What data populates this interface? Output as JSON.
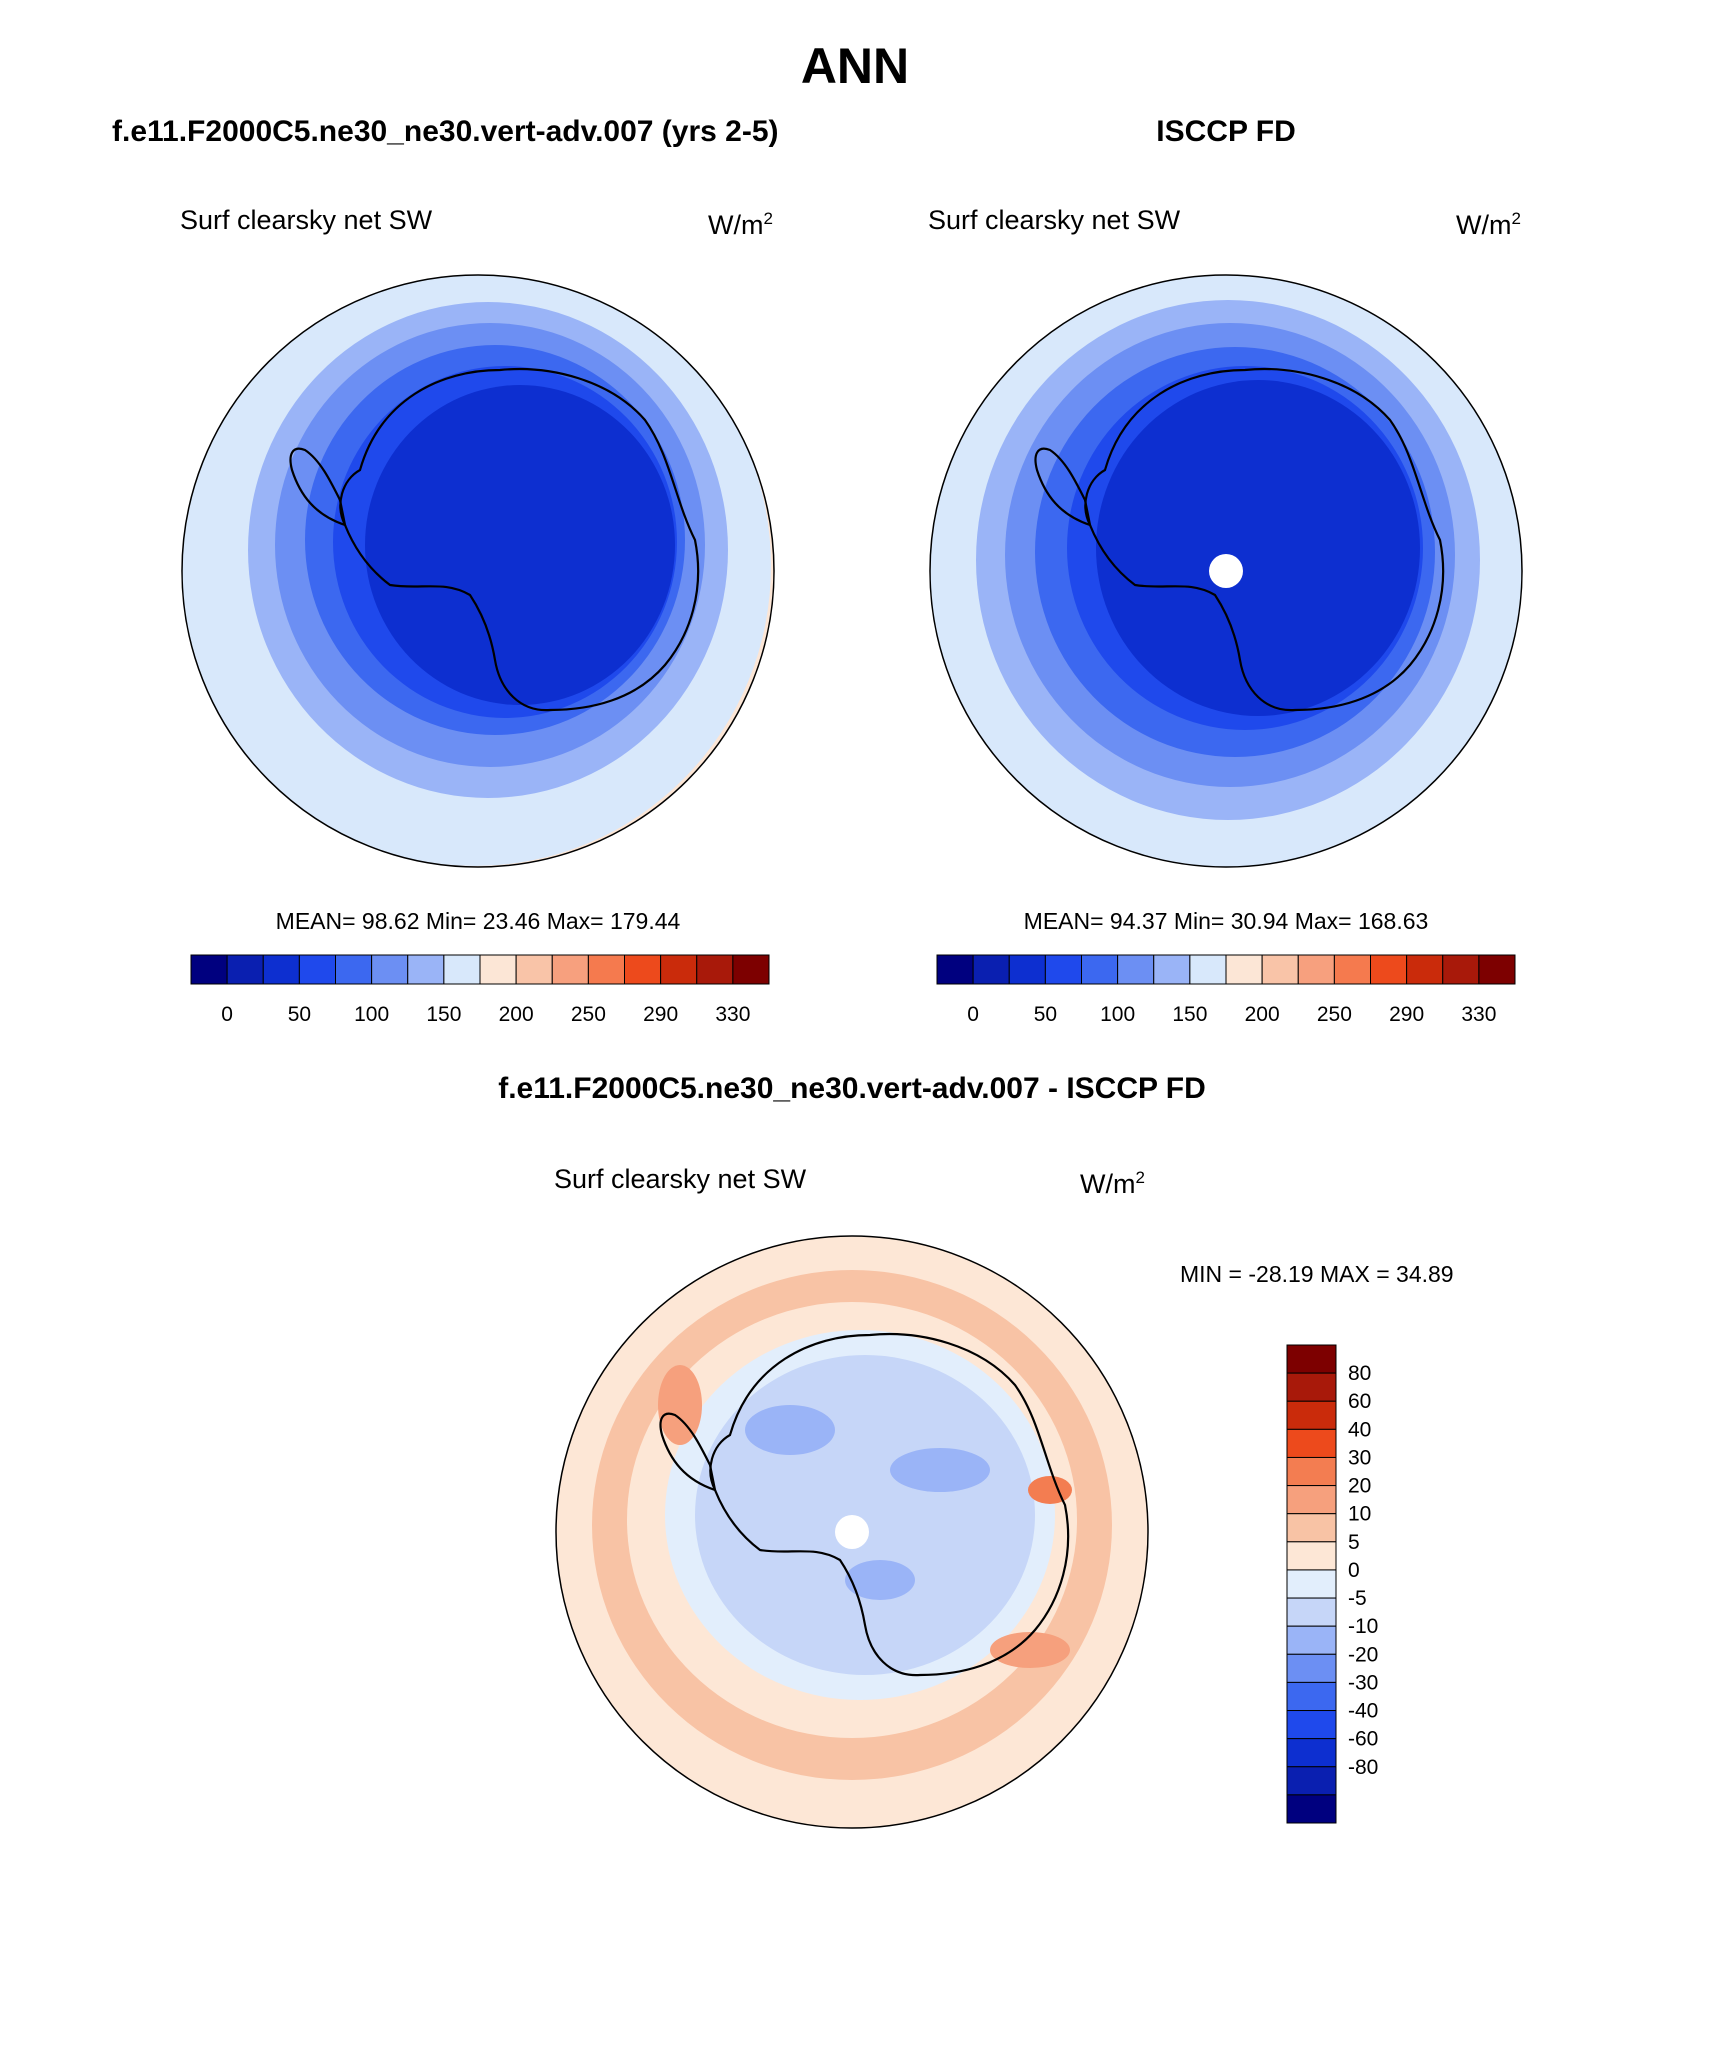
{
  "main_title": "ANN",
  "panels": {
    "model": {
      "title": "f.e11.F2000C5.ne30_ne30.vert-adv.007 (yrs 2-5)",
      "variable": "Surf clearsky net SW",
      "units_base": "W/m",
      "units_exp": "2",
      "stats": "MEAN=  98.62  Min=  23.46  Max= 179.44"
    },
    "obs": {
      "title": "ISCCP FD",
      "variable": "Surf clearsky net SW",
      "units_base": "W/m",
      "units_exp": "2",
      "stats": "MEAN=  94.37  Min=  30.94  Max= 168.63"
    },
    "diff": {
      "title": "f.e11.F2000C5.ne30_ne30.vert-adv.007 - ISCCP FD",
      "variable": "Surf clearsky net SW",
      "units_base": "W/m",
      "units_exp": "2",
      "stats": "MIN = -28.19 MAX =  34.89"
    }
  },
  "colors": {
    "abs_scale": [
      "#00007f",
      "#0a1fb0",
      "#0d2fd0",
      "#1f49ec",
      "#3c68f0",
      "#6c8ff3",
      "#9ab4f7",
      "#d8e8fb",
      "#fce6d6",
      "#f9c4a8",
      "#f7a07e",
      "#f57a4e",
      "#ed4a1c",
      "#ca2b0b",
      "#a8190a",
      "#7d0000"
    ],
    "diff_scale": [
      "#00007f",
      "#0a1fb0",
      "#0d2fd0",
      "#1f49ec",
      "#3c68f0",
      "#6c8ff3",
      "#9ab4f7",
      "#c6d6f8",
      "#e2eefc",
      "#fde7d6",
      "#f8c3a5",
      "#f6a07d",
      "#f37d51",
      "#ed4a1c",
      "#ca2b0b",
      "#a8190a",
      "#7d0000"
    ],
    "land_outline": "#000000",
    "map_border": "#000000"
  },
  "chart_data": [
    {
      "type": "heatmap",
      "title": "f.e11.F2000C5.ne30_ne30.vert-adv.007 (yrs 2-5)",
      "subtitle": "Surf clearsky net SW",
      "units": "W/m2",
      "projection": "south polar stereographic",
      "colorbar_labels": [
        "0",
        "50",
        "100",
        "150",
        "200",
        "250",
        "290",
        "330"
      ],
      "stats": {
        "mean": 98.62,
        "min": 23.46,
        "max": 179.44
      }
    },
    {
      "type": "heatmap",
      "title": "ISCCP FD",
      "subtitle": "Surf clearsky net SW",
      "units": "W/m2",
      "projection": "south polar stereographic",
      "colorbar_labels": [
        "0",
        "50",
        "100",
        "150",
        "200",
        "250",
        "290",
        "330"
      ],
      "stats": {
        "mean": 94.37,
        "min": 30.94,
        "max": 168.63
      }
    },
    {
      "type": "heatmap",
      "title": "f.e11.F2000C5.ne30_ne30.vert-adv.007 - ISCCP FD",
      "subtitle": "Surf clearsky net SW",
      "units": "W/m2",
      "projection": "south polar stereographic",
      "colorbar_labels": [
        "80",
        "60",
        "40",
        "30",
        "20",
        "10",
        "5",
        "0",
        "-5",
        "-10",
        "-20",
        "-30",
        "-40",
        "-60",
        "-80"
      ],
      "stats": {
        "min": -28.19,
        "max": 34.89
      }
    }
  ]
}
